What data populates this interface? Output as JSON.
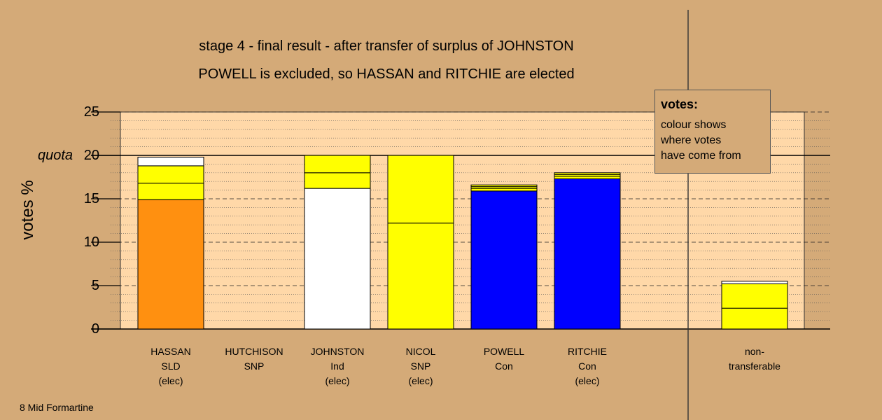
{
  "chart_data": {
    "type": "bar",
    "title": "stage 4 - final result - after transfer of surplus of JOHNSTON",
    "subtitle": "POWELL is excluded, so HASSAN and RITCHIE are elected",
    "ylabel": "votes %",
    "ylim": [
      0,
      25
    ],
    "yticks": [
      "0",
      "5",
      "10",
      "15",
      "20",
      "25"
    ],
    "quota_label": "quota",
    "quota": 20,
    "grid": true,
    "legend": {
      "title": "votes:",
      "lines": [
        "colour shows",
        "where votes",
        "have come from"
      ]
    },
    "candidates": [
      {
        "name": "HASSAN",
        "party": "SLD",
        "status": "(elec)",
        "segments": [
          {
            "value": 14.9,
            "color": "#FF9010"
          },
          {
            "value": 1.9,
            "color": "#FFFF00"
          },
          {
            "value": 2.0,
            "color": "#FFFF00"
          },
          {
            "value": 1.0,
            "color": "#FFFFFF"
          }
        ]
      },
      {
        "name": "HUTCHISON",
        "party": "SNP",
        "status": "",
        "segments": []
      },
      {
        "name": "JOHNSTON",
        "party": "Ind",
        "status": "(elec)",
        "segments": [
          {
            "value": 16.2,
            "color": "#FFFFFF"
          },
          {
            "value": 1.8,
            "color": "#FFFF00"
          },
          {
            "value": 2.0,
            "color": "#FFFF00"
          }
        ]
      },
      {
        "name": "NICOL",
        "party": "SNP",
        "status": "(elec)",
        "segments": [
          {
            "value": 12.2,
            "color": "#FFFF00"
          },
          {
            "value": 7.8,
            "color": "#FFFF00"
          }
        ]
      },
      {
        "name": "POWELL",
        "party": "Con",
        "status": "",
        "segments": [
          {
            "value": 15.9,
            "color": "#0000FF"
          },
          {
            "value": 0.3,
            "color": "#FFFF00"
          },
          {
            "value": 0.2,
            "color": "#FFFF00"
          },
          {
            "value": 0.2,
            "color": "#FFFF00"
          }
        ]
      },
      {
        "name": "RITCHIE",
        "party": "Con",
        "status": "(elec)",
        "segments": [
          {
            "value": 17.3,
            "color": "#0000FF"
          },
          {
            "value": 0.3,
            "color": "#FFFF00"
          },
          {
            "value": 0.2,
            "color": "#FFFF00"
          },
          {
            "value": 0.2,
            "color": "#FFFF00"
          }
        ]
      },
      {
        "name": "non-",
        "party": "transferable",
        "status": "",
        "segments": [
          {
            "value": 2.4,
            "color": "#FFFF00"
          },
          {
            "value": 2.8,
            "color": "#FFFF00"
          },
          {
            "value": 0.3,
            "color": "#FFFFFF"
          }
        ]
      }
    ]
  },
  "footer": "8 Mid Formartine",
  "colors": {
    "background": "#D4AA78",
    "plot": "#FFD8A8",
    "SLD": "#FF9010",
    "SNP": "#FFFF00",
    "Con": "#0000FF",
    "Ind": "#FFFFFF"
  }
}
